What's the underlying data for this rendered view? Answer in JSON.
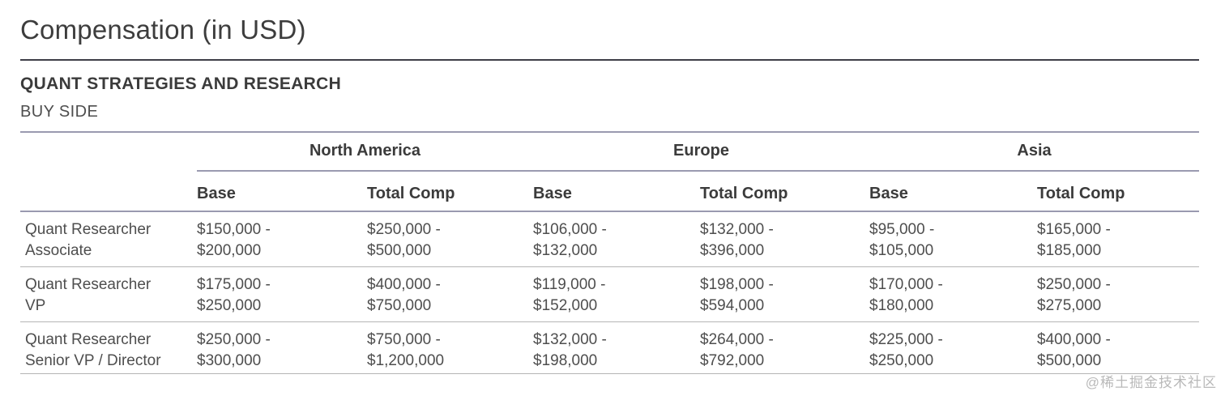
{
  "header": {
    "title": "Compensation (in USD)",
    "section_title": "QUANT STRATEGIES AND RESEARCH",
    "section_subtitle": "BUY SIDE"
  },
  "chart_data": {
    "type": "table",
    "title": "Compensation (in USD)",
    "section": "QUANT STRATEGIES AND RESEARCH",
    "subsection": "BUY SIDE",
    "column_groups": [
      "North America",
      "Europe",
      "Asia"
    ],
    "sub_columns": [
      "Base",
      "Total Comp"
    ],
    "sub_headers": [
      "Base",
      "Total Comp",
      "Base",
      "Total Comp",
      "Base",
      "Total Comp"
    ],
    "rows": [
      {
        "role": "Quant Researcher Associate",
        "role_lines": [
          "Quant Researcher",
          "Associate"
        ],
        "cells_display": [
          [
            "$150,000 -",
            "$200,000"
          ],
          [
            "$250,000 -",
            "$500,000"
          ],
          [
            "$106,000 -",
            "$132,000"
          ],
          [
            "$132,000 -",
            "$396,000"
          ],
          [
            "$95,000 -",
            "$105,000"
          ],
          [
            "$165,000 -",
            "$185,000"
          ]
        ],
        "values_usd": {
          "north_america": {
            "base": [
              150000,
              200000
            ],
            "total_comp": [
              250000,
              500000
            ]
          },
          "europe": {
            "base": [
              106000,
              132000
            ],
            "total_comp": [
              132000,
              396000
            ]
          },
          "asia": {
            "base": [
              95000,
              105000
            ],
            "total_comp": [
              165000,
              185000
            ]
          }
        }
      },
      {
        "role": "Quant Researcher VP",
        "role_lines": [
          "Quant Researcher",
          "VP"
        ],
        "cells_display": [
          [
            "$175,000 -",
            "$250,000"
          ],
          [
            "$400,000 -",
            "$750,000"
          ],
          [
            "$119,000 -",
            "$152,000"
          ],
          [
            "$198,000 -",
            "$594,000"
          ],
          [
            "$170,000 -",
            "$180,000"
          ],
          [
            "$250,000 -",
            "$275,000"
          ]
        ],
        "values_usd": {
          "north_america": {
            "base": [
              175000,
              250000
            ],
            "total_comp": [
              400000,
              750000
            ]
          },
          "europe": {
            "base": [
              119000,
              152000
            ],
            "total_comp": [
              198000,
              594000
            ]
          },
          "asia": {
            "base": [
              170000,
              180000
            ],
            "total_comp": [
              250000,
              275000
            ]
          }
        }
      },
      {
        "role": "Quant Researcher Senior VP / Director",
        "role_lines": [
          "Quant Researcher",
          "Senior VP / Director"
        ],
        "cells_display": [
          [
            "$250,000 -",
            "$300,000"
          ],
          [
            "$750,000 -",
            "$1,200,000"
          ],
          [
            "$132,000 -",
            "$198,000"
          ],
          [
            "$264,000 -",
            "$792,000"
          ],
          [
            "$225,000 -",
            "$250,000"
          ],
          [
            "$400,000 -",
            "$500,000"
          ]
        ],
        "values_usd": {
          "north_america": {
            "base": [
              250000,
              300000
            ],
            "total_comp": [
              750000,
              1200000
            ]
          },
          "europe": {
            "base": [
              132000,
              198000
            ],
            "total_comp": [
              264000,
              792000
            ]
          },
          "asia": {
            "base": [
              225000,
              250000
            ],
            "total_comp": [
              400000,
              500000
            ]
          }
        }
      }
    ],
    "layout": {
      "grid": "off",
      "group_header_underline": true,
      "row_separators": true
    }
  },
  "footer": {
    "watermark": "@稀土掘金技术社区"
  },
  "colors": {
    "title_text": "#3d3d3d",
    "header_text": "#3b3b3b",
    "body_text": "#4e4e4e",
    "dark_rule": "#3e3e47",
    "blue_gray_rule": "#9a9ab0",
    "row_separator": "#b5b5b5",
    "watermark": "#b9b9b9",
    "background": "#ffffff"
  }
}
